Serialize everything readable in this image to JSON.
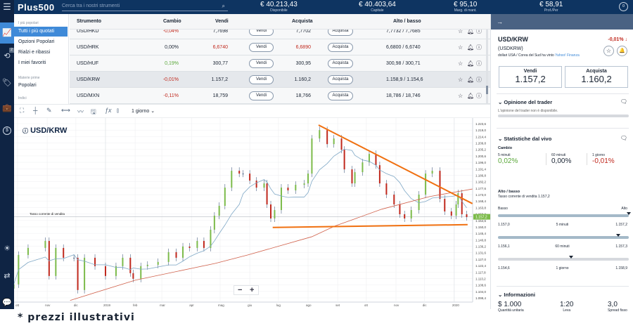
{
  "header": {
    "logo": "Plus500",
    "search_placeholder": "Cerca tra i nostri strumenti",
    "stats": [
      {
        "value": "€ 40.213,43",
        "label": "Disponibile"
      },
      {
        "value": "€ 40.403,64",
        "label": "Capitale"
      },
      {
        "value": "€ 95,10",
        "label": "Marg. di mant."
      },
      {
        "value": "€ 58,91",
        "label": "Prof./Per"
      }
    ],
    "notif_count": "0"
  },
  "nav": {
    "badge": "2"
  },
  "menu": {
    "sections": [
      {
        "title": "I più popolari",
        "items": [
          "Tutti i più quotati",
          "Opzioni Popolari",
          "Rialzi e ribassi",
          "I miei favoriti"
        ]
      },
      {
        "title": "Materie prime",
        "items": [
          "Popolari"
        ]
      },
      {
        "title": "Indici",
        "items": []
      }
    ],
    "selected": "Tutti i più quotati"
  },
  "table": {
    "columns": [
      "Strumento",
      "Cambio",
      "Vendi",
      "Acquista",
      "Alto / basso"
    ],
    "sell_label": "Vendi",
    "buy_label": "Acquista",
    "rows": [
      {
        "name": "USD/HKD",
        "change": "-0,04%",
        "sell": "7,7698",
        "buy": "7,7702",
        "hilo": "7,7732 / 7,7685",
        "dir": "down"
      },
      {
        "name": "USD/HRK",
        "change": "0,00%",
        "sell": "6,6740",
        "buy": "6,6890",
        "hilo": "6,6800 / 6,6740",
        "dir": "flat"
      },
      {
        "name": "USD/HUF",
        "change": "0,19%",
        "sell": "300,77",
        "buy": "300,95",
        "hilo": "300,98 / 300,71",
        "dir": "up"
      },
      {
        "name": "USD/KRW",
        "change": "-0,01%",
        "sell": "1.157,2",
        "buy": "1.160,2",
        "hilo": "1.158,9 / 1.154,6",
        "dir": "down",
        "selected": true
      },
      {
        "name": "USD/MXN",
        "change": "-0,11%",
        "sell": "18,759",
        "buy": "18,766",
        "hilo": "18,786 / 18,746",
        "dir": "down"
      }
    ]
  },
  "chart_toolbar": {
    "period": "1 giorno"
  },
  "chart_data": {
    "type": "candlestick",
    "title": "USD/KRW",
    "current_label": "Tasso corrente di vendita",
    "current": 1157.2,
    "current_tag": "1.157,2",
    "ylim": [
      1099.4,
      1223.6
    ],
    "yticks": [
      "1.223,6",
      "1.219,0",
      "1.214,4",
      "1.209,8",
      "1.205,2",
      "1.200,6",
      "1.196,0",
      "1.191,4",
      "1.186,8",
      "1.182,2",
      "1.177,6",
      "1.173,0",
      "1.168,4",
      "1.163,8",
      "1.159,2",
      "1.154,6",
      "1.150,0",
      "1.145,4",
      "1.140,8",
      "1.136,2",
      "1.131,6",
      "1.127,0",
      "1.122,4",
      "1.117,8",
      "1.113,2",
      "1.108,6",
      "1.104,0",
      "1.099,4"
    ],
    "xticks": [
      [
        "2018-10-01",
        "ott"
      ],
      [
        "2018-11-01",
        "nov"
      ],
      [
        "2018-12-01",
        "dic"
      ],
      [
        "2019-01-01",
        "2019"
      ],
      [
        "2019-02-01",
        "feb"
      ],
      [
        "2019-03-01",
        "mar"
      ],
      [
        "2019-04-01",
        "apr"
      ],
      [
        "2019-05-01",
        "mag"
      ],
      [
        "2019-06-01",
        "giu"
      ],
      [
        "2019-07-01",
        "lug"
      ],
      [
        "2019-08-01",
        "ago"
      ],
      [
        "2019-09-01",
        "set"
      ],
      [
        "2019-10-01",
        "ott"
      ],
      [
        "2019-11-01",
        "nov"
      ],
      [
        "2019-12-01",
        "dic"
      ],
      [
        "2020-01-01",
        "2020"
      ]
    ],
    "closes": [
      [
        "2018-09-27",
        1109
      ],
      [
        "2018-10-02",
        1130
      ],
      [
        "2018-10-12",
        1135
      ],
      [
        "2018-10-30",
        1140
      ],
      [
        "2018-11-03",
        1115
      ],
      [
        "2018-11-10",
        1135
      ],
      [
        "2018-11-18",
        1128
      ],
      [
        "2018-11-29",
        1128
      ],
      [
        "2018-12-03",
        1105
      ],
      [
        "2018-12-10",
        1128
      ],
      [
        "2018-12-21",
        1122
      ],
      [
        "2019-01-01",
        1115
      ],
      [
        "2019-01-12",
        1122
      ],
      [
        "2019-01-19",
        1128
      ],
      [
        "2019-01-27",
        1117
      ],
      [
        "2019-01-30",
        1113
      ],
      [
        "2019-02-07",
        1122
      ],
      [
        "2019-02-14",
        1123
      ],
      [
        "2019-02-25",
        1125
      ],
      [
        "2019-03-08",
        1132
      ],
      [
        "2019-03-16",
        1128
      ],
      [
        "2019-03-23",
        1136
      ],
      [
        "2019-03-30",
        1135
      ],
      [
        "2019-04-07",
        1140
      ],
      [
        "2019-04-14",
        1135
      ],
      [
        "2019-04-21",
        1148
      ],
      [
        "2019-04-25",
        1158
      ],
      [
        "2019-04-30",
        1165
      ],
      [
        "2019-05-06",
        1178
      ],
      [
        "2019-05-13",
        1190
      ],
      [
        "2019-05-21",
        1188
      ],
      [
        "2019-05-25",
        1188
      ],
      [
        "2019-06-01",
        1183
      ],
      [
        "2019-06-08",
        1178
      ],
      [
        "2019-06-16",
        1181
      ],
      [
        "2019-06-19",
        1166
      ],
      [
        "2019-06-23",
        1156
      ],
      [
        "2019-06-27",
        1162
      ],
      [
        "2019-07-04",
        1178
      ],
      [
        "2019-07-11",
        1176
      ],
      [
        "2019-07-19",
        1180
      ],
      [
        "2019-07-28",
        1181
      ],
      [
        "2019-08-01",
        1188
      ],
      [
        "2019-08-05",
        1213
      ],
      [
        "2019-08-13",
        1219
      ],
      [
        "2019-08-21",
        1209
      ],
      [
        "2019-08-28",
        1213
      ],
      [
        "2019-09-05",
        1205
      ],
      [
        "2019-09-08",
        1191
      ],
      [
        "2019-09-16",
        1181
      ],
      [
        "2019-09-19",
        1189
      ],
      [
        "2019-09-27",
        1196
      ],
      [
        "2019-10-04",
        1202
      ],
      [
        "2019-10-11",
        1194
      ],
      [
        "2019-10-15",
        1181
      ],
      [
        "2019-10-22",
        1173
      ],
      [
        "2019-10-30",
        1166
      ],
      [
        "2019-11-05",
        1159
      ],
      [
        "2019-11-10",
        1156
      ],
      [
        "2019-11-17",
        1162
      ],
      [
        "2019-11-25",
        1173
      ],
      [
        "2019-12-02",
        1188
      ],
      [
        "2019-12-09",
        1190
      ],
      [
        "2019-12-17",
        1170
      ],
      [
        "2019-12-22",
        1161
      ],
      [
        "2019-12-29",
        1158
      ],
      [
        "2020-01-03",
        1166
      ],
      [
        "2020-01-05",
        1174
      ],
      [
        "2020-01-09",
        1159
      ],
      [
        "2020-01-14",
        1157
      ]
    ],
    "ma_long": [
      [
        "2018-11-25",
        1097.6
      ],
      [
        "2019-02-01",
        1112
      ],
      [
        "2019-04-26",
        1124
      ],
      [
        "2019-05-30",
        1130
      ],
      [
        "2019-08-05",
        1143
      ],
      [
        "2019-08-29",
        1150.6
      ],
      [
        "2019-10-17",
        1162.6
      ],
      [
        "2019-12-06",
        1171.6
      ],
      [
        "2020-01-20",
        1177
      ]
    ],
    "trendlines": [
      {
        "from": [
          "2019-08-12",
          1222.6
        ],
        "to": [
          "2020-01-20",
          1166.6
        ]
      },
      {
        "from": [
          "2019-06-25",
          1149.6
        ],
        "to": [
          "2020-01-15",
          1151.6
        ]
      }
    ],
    "colors": {
      "up": "#7cbb4a",
      "down": "#c0281d",
      "neutral": "#4a6283",
      "ma_short": "#7fa8c6",
      "ma_long": "#d0604a",
      "trend": "#f07010"
    }
  },
  "panel": {
    "symbol": "USD/KRW",
    "change": "-0,01%",
    "code": "(USDKRW)",
    "desc": "dollari USA / Corea del Sud ha vinto",
    "desc_link": "Yahoo! Finanza",
    "sell_label": "Vendi",
    "sell": "1.157,2",
    "buy_label": "Acquista",
    "buy": "1.160,2",
    "opinion_title": "Opinione del trader",
    "opinion_text": "L'opinione del trader non è disponibile.",
    "stats_title": "Statistiche dal vivo",
    "change_title": "Cambio",
    "changes": [
      {
        "label": "5 minuti",
        "value": "0,02%",
        "dir": "up"
      },
      {
        "label": "60 minuti",
        "value": "0,00%",
        "dir": "flat"
      },
      {
        "label": "1 giorno",
        "value": "-0,01%",
        "dir": "down"
      }
    ],
    "hilo_title": "Alto / basso",
    "hilo_sub": "Tasso corrente di vendita 1.157,2",
    "low_label": "Basso",
    "high_label": "Alto",
    "ranges": [
      {
        "low": "1.157,0",
        "label": "5 minuti",
        "high": "1.157,2",
        "position": 1.0
      },
      {
        "low": "1.156,1",
        "label": "60 minuti",
        "high": "1.157,3",
        "position": 0.92
      },
      {
        "low": "1.154,6",
        "label": "1 giorno",
        "high": "1.158,9",
        "position": 0.56
      }
    ],
    "info_title": "Informazioni",
    "info": [
      {
        "value": "$ 1.000",
        "label": "Quantità unitaria"
      },
      {
        "value": "1:20",
        "label": "Leva"
      },
      {
        "value": "3,0",
        "label": "Spread fisso"
      }
    ]
  },
  "footer": "* prezzi illustrativi"
}
